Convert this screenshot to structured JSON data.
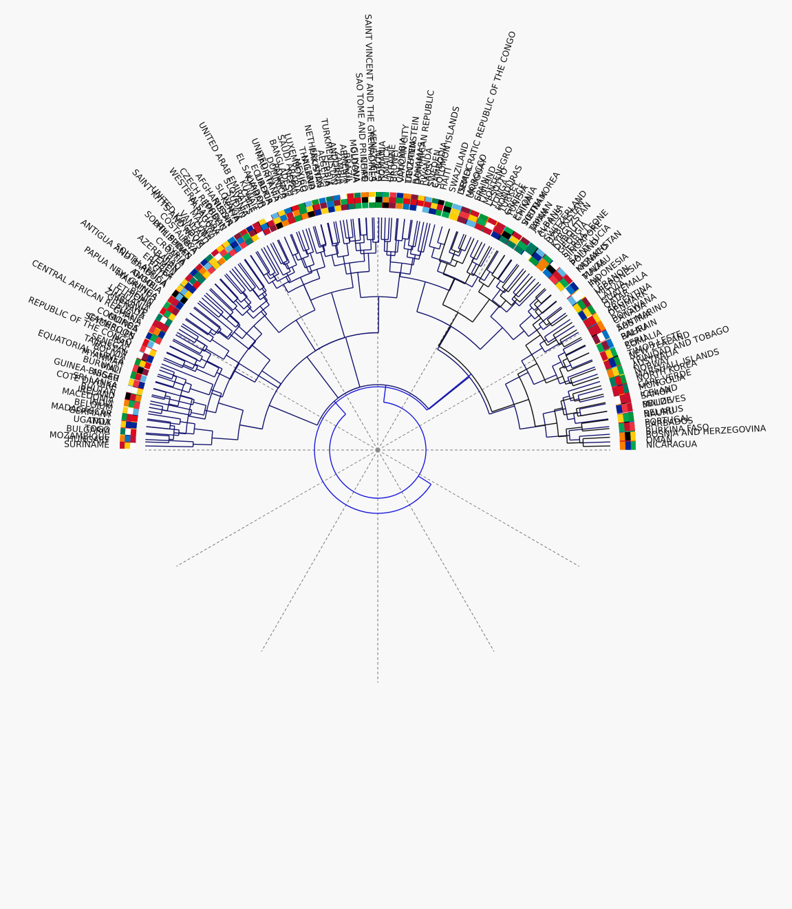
{
  "figure": {
    "type": "circular-dendrogram",
    "description_colors": {
      "background": "#f8f8f8",
      "root_branch": "#1a1adb",
      "navy_branch": "#14146e",
      "black_branch": "#111111",
      "guide": "#777777"
    }
  },
  "colors": [
    "#ce1126",
    "#ffffff",
    "#002395",
    "#009739",
    "#fcd116",
    "#000000",
    "#ef3340",
    "#0072c6",
    "#f77f00",
    "#5eb6e4",
    "#e30a17",
    "#007a5e",
    "#c8102e",
    "#ffcc00",
    "#00a651",
    "#8a1538"
  ],
  "clusters": [
    {
      "name": "cluster-top",
      "color": "#14146e",
      "leaves": [
        "OMAN",
        "BURKINA FASO",
        "PORTUGAL",
        "BELARUS",
        "MALDIVES",
        "SAMOA",
        "MONGOLIA",
        "NORTH KOREA",
        "NORWAY",
        "TRINIDAD AND TOBAGO",
        "TIMOR LESTE",
        "PERU",
        "BAHRAIN",
        "AUSTRIA",
        "CANADA",
        "DENMARK",
        "QATAR",
        "LATVIA",
        "LEBANON",
        "INDONESIA",
        "MALTA",
        "MONACO",
        "POLAND",
        "SINGAPORE",
        "GEORGIA",
        "KYRGYZSTAN",
        "SWITZERLAND",
        "ALBANIA",
        "TAIWAN",
        "VIETNAM",
        "CHINA",
        "TUNISIA",
        "TURKEY",
        "TONGA",
        "MONTENEGRO",
        "SPAIN",
        "MOROCCO",
        "DEMOCRATIC REPUBLIC OF THE CONGO",
        "SWAZILAND",
        "HAITI",
        "CAMBODIA",
        "LAOS",
        "DOMINICAN REPUBLIC",
        "LIECHTENSTEIN",
        "COLOMBIA",
        "UKRAINE",
        "ROMANIA",
        "VENEZUELA",
        "CHAD",
        "MOLDOVA",
        "ARMENIA",
        "ANDORRA",
        "SERBIA",
        "NETHERLANDS",
        "THAILAND",
        "LUXEMBOURG",
        "NEPAL",
        "PANAMA",
        "UNITED STATES",
        "LIBERIA",
        "KIRIBATI",
        "CHILE",
        "SLOVENIA",
        "SLOVAKIA",
        "RUSSIA",
        "CZECH REPUBLIC",
        "PARAGUAY",
        "CUBA",
        "UNITED KINGDOM",
        "COSTA RICA",
        "PHILIPPINES",
        "CROATIA",
        "AZERBAIJAN",
        "ERITREA",
        "SOUTH AFRICA",
        "GAMBIA",
        "MAURITIUS",
        "ETHIOPIA",
        "ZIMBABWE",
        "CENTRAL AFRICAN REPUBLIC",
        "COMOROS",
        "SEYCHELLES",
        "IRAN",
        "TAJIKISTAN",
        "EQUATORIAL GUINEA",
        "BURUNDI",
        "NIGER",
        "COTE DIVOIRE",
        "IRELAND",
        "INDIA",
        "MADAGASCAR",
        "ITALY",
        "BULGARIA",
        "HUNGARY"
      ]
    },
    {
      "name": "cluster-bottom",
      "color": "#14146e",
      "leaves": [
        "SURINAME",
        "MOZAMBIQUE",
        "TOGO",
        "UGANDA",
        "GERMANY",
        "BELGIUM",
        "MACEDONIA",
        "BHUTAN",
        "SRI LANKA",
        "GUINEA-BISSAU",
        "MALI",
        "MYANMAR",
        "BOLIVIA",
        "SENEGAL",
        "REPUBLIC OF THE CONGO",
        "CAMEROON",
        "GUINEA",
        "GHANA",
        "GRENADA",
        "LITHUANIA",
        "BENIN",
        "PAPUA NEW GUINEA",
        "ANGOLA",
        "ANTIGUA AND BARBUDA",
        "EGYPT",
        "YEMEN",
        "IRAQ",
        "SYRIA",
        "SOUTH SUDAN",
        "LIBYA",
        "SAINT KITTS AND NEVIS",
        "VANUATU",
        "MALAWI",
        "WESTERN SAHARA",
        "JORDAN",
        "AFGHANISTAN",
        "KENYA",
        "SUDAN",
        "UNITED ARAB EMIRATES",
        "KUWAIT",
        "EL SALVADOR",
        "ECUADOR",
        "MAURITANIA",
        "DOMINICA",
        "BANGLADESH",
        "SAUDI ARABIA",
        "MEXICO",
        "NIGERIA",
        "PAKISTAN",
        "ALGERIA",
        "TURKMENISTAN",
        "ZAMBIA",
        "BRAZIL",
        "GUYANA",
        "SAO TOME AND PRINCIPE",
        "SAINT VINCENT AND THE GRENADINES",
        "GABON",
        "JAMAICA",
        "BRUNEI",
        "VATICAN CITY",
        "TANZANIA",
        "BAHAMAS",
        "RWANDA",
        "SWEDEN",
        "SOLOMON ISLANDS"
      ]
    },
    {
      "name": "cluster-right",
      "color": "#111111",
      "leaves": [
        "ISRAEL",
        "URUGUAY",
        "FINLAND",
        "LESOTHO",
        "HONDURAS",
        "GREECE",
        "ESTONIA",
        "SOUTH KOREA",
        "JAPAN",
        "CYPRUS",
        "UZBEKISTAN",
        "DJIBOUTI",
        "SIERRA LEONE",
        "SAINT LUCIA",
        "KAZAKHSTAN",
        "TUVALU",
        "FIJI",
        "MICRONESIA",
        "GUATEMALA",
        "ARGENTINA",
        "BOTSWANA",
        "SAN MARINO",
        "PALAU",
        "SOMALIA",
        "NEW ZEALAND",
        "AUSTRALIA",
        "MARSHALL ISLANDS",
        "CAPE VERDE",
        "ICELAND",
        "BELIZE",
        "NAURU",
        "BARBADOS",
        "BOSNIA AND HERZEGOVINA",
        "NICARAGUA"
      ]
    }
  ]
}
